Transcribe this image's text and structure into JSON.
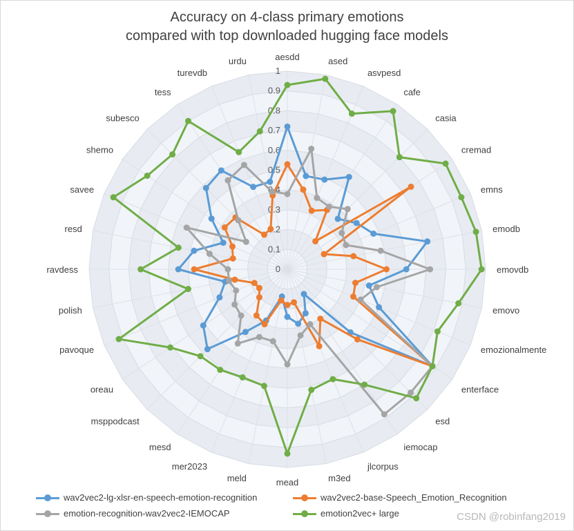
{
  "title_line1": "Accuracy on 4-class primary emotions",
  "title_line2": "compared with top downloaded hugging face models",
  "watermark": "CSDN @robinfang2019",
  "chart_data": {
    "type": "radar",
    "title": "Accuracy on 4-class primary emotions compared with top downloaded hugging face models",
    "categories": [
      "aesdd",
      "ased",
      "asvpesd",
      "cafe",
      "casia",
      "cremad",
      "emns",
      "emodb",
      "emovdb",
      "emovo",
      "emozionalmente",
      "enterface",
      "esd",
      "iemocap",
      "jlcorpus",
      "m3ed",
      "mead",
      "meld",
      "mer2023",
      "mesd",
      "msppodcast",
      "oreau",
      "pavoque",
      "polish",
      "ravdess",
      "resd",
      "savee",
      "shemo",
      "subesco",
      "tess",
      "turevdb",
      "urdu"
    ],
    "radial_ticks": [
      "0",
      "0.1",
      "0.2",
      "0.3",
      "0.4",
      "0.5",
      "0.6",
      "0.7",
      "0.8",
      "0.9",
      "1"
    ],
    "rlim": [
      0,
      1
    ],
    "grid": true,
    "legend_position": "bottom",
    "series": [
      {
        "name": "wav2vec2-lg-xlsr-en-speech-emotion-recognition",
        "color": "#5b9bd5",
        "values": [
          0.72,
          0.48,
          0.49,
          0.56,
          0.36,
          0.42,
          0.47,
          0.72,
          0.6,
          0.42,
          0.5,
          0.88,
          0.45,
          0.15,
          0.24,
          0.28,
          0.24,
          0.14,
          0.28,
          0.38,
          0.57,
          0.51,
          0.37,
          0.32,
          0.55,
          0.48,
          0.35,
          0.46,
          0.58,
          0.6,
          0.45,
          0.45
        ]
      },
      {
        "name": "wav2vec2-base-Speech_Emotion_Recognition",
        "color": "#ed7d31",
        "values": [
          0.53,
          0.41,
          0.32,
          0.36,
          0.2,
          0.75,
          0.2,
          0.34,
          0.5,
          0.35,
          0.36,
          0.88,
          0.5,
          0.3,
          0.42,
          0.17,
          0.18,
          0.16,
          0.3,
          0.28,
          0.2,
          0.17,
          0.18,
          0.27,
          0.47,
          0.28,
          0.3,
          0.38,
          0.37,
          0.21,
          0.22,
          0.38
        ]
      },
      {
        "name": "emotion-recognition-wav2vec2-IEMOCAP",
        "color": "#a5a5a5",
        "values": [
          0.38,
          0.62,
          0.39,
          0.38,
          0.43,
          0.33,
          0.32,
          0.48,
          0.72,
          0.46,
          0.4,
          0.88,
          0.88,
          0.88,
          0.3,
          0.34,
          0.48,
          0.37,
          0.37,
          0.45,
          0.33,
          0.32,
          0.28,
          0.3,
          0.3,
          0.4,
          0.55,
          0.25,
          0.35,
          0.54,
          0.57,
          0.4
        ]
      },
      {
        "name": "emotion2vec+ large",
        "color": "#70ad47",
        "values": [
          0.93,
          0.98,
          0.85,
          0.96,
          0.8,
          0.96,
          0.95,
          0.97,
          0.98,
          0.88,
          0.82,
          0.88,
          0.92,
          0.7,
          0.6,
          0.62,
          0.93,
          0.6,
          0.59,
          0.61,
          0.62,
          0.71,
          0.92,
          0.51,
          0.74,
          0.56,
          0.95,
          0.85,
          0.82,
          0.9,
          0.64,
          0.71
        ]
      }
    ]
  }
}
